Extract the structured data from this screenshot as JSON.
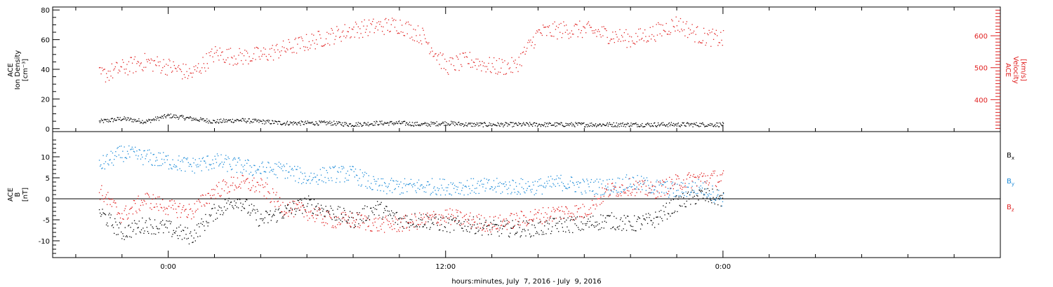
{
  "chart_data": [
    {
      "type": "scatter",
      "panel": "top",
      "ylabel_left": [
        "ACE",
        "Ion Density",
        "[cm⁻³]"
      ],
      "ylabel_right": [
        "ACE",
        "Velocity",
        "[km/s]"
      ],
      "ylim_left": [
        -2,
        82
      ],
      "ylim_right": [
        300,
        690
      ],
      "yticks_left": [
        "80",
        "60",
        "40",
        "20",
        "0"
      ],
      "yticks_right": [
        "600",
        "500",
        "400"
      ],
      "series": [
        {
          "axis": "left",
          "color": "#000000",
          "x": [
            -3,
            -2,
            -1,
            0,
            1,
            2,
            3,
            4,
            5,
            6,
            7,
            8,
            9,
            10,
            11,
            12,
            13,
            14,
            15,
            16,
            17,
            18,
            19,
            20,
            21,
            22,
            23,
            24
          ],
          "y": [
            5,
            7,
            5,
            9,
            7,
            5,
            6,
            5,
            4,
            4,
            4,
            3,
            4,
            4,
            3,
            4,
            3,
            3,
            3,
            3,
            3,
            3,
            3,
            3,
            3,
            3,
            3,
            3
          ]
        },
        {
          "axis": "right",
          "color": "#e02020",
          "x": [
            -3,
            -2,
            -1,
            0,
            1,
            2,
            3,
            4,
            5,
            6,
            7,
            8,
            9,
            10,
            11,
            12,
            13,
            14,
            15,
            16,
            17,
            18,
            19,
            20,
            21,
            22,
            23,
            24
          ],
          "y": [
            475,
            500,
            520,
            505,
            480,
            545,
            535,
            540,
            560,
            580,
            600,
            620,
            630,
            635,
            600,
            505,
            525,
            505,
            505,
            610,
            620,
            620,
            605,
            590,
            610,
            640,
            600,
            590
          ]
        }
      ]
    },
    {
      "type": "scatter",
      "panel": "bottom",
      "ylabel": [
        "ACE",
        "B",
        "[nT]"
      ],
      "ylim": [
        -14,
        16
      ],
      "yticks": [
        "10",
        "5",
        "0",
        "-5",
        "-10"
      ],
      "zero_line": true,
      "legend": [
        {
          "text": "B",
          "sub": "x",
          "color": "#000000"
        },
        {
          "text": "B",
          "sub": "y",
          "color": "#1a8ad8"
        },
        {
          "text": "B",
          "sub": "z",
          "color": "#e02020"
        }
      ],
      "series": [
        {
          "name": "Bx",
          "color": "#000000",
          "x": [
            -3,
            -2,
            -1,
            0,
            1,
            2,
            3,
            4,
            5,
            6,
            7,
            8,
            9,
            10,
            11,
            12,
            13,
            14,
            15,
            16,
            17,
            18,
            19,
            20,
            21,
            22,
            23,
            24
          ],
          "y": [
            -3,
            -8,
            -6,
            -7,
            -9,
            -3,
            0,
            -5,
            -3,
            -1,
            -3,
            -5,
            -2,
            -5,
            -5,
            -6,
            -6,
            -7,
            -7,
            -7,
            -6,
            -6,
            -5,
            -6,
            -5,
            -1,
            1,
            0
          ]
        },
        {
          "name": "By",
          "color": "#1a8ad8",
          "x": [
            -3,
            -2,
            -1,
            0,
            1,
            2,
            3,
            4,
            5,
            6,
            7,
            8,
            9,
            10,
            11,
            12,
            13,
            14,
            15,
            16,
            17,
            18,
            19,
            20,
            21,
            22,
            23,
            24
          ],
          "y": [
            8,
            11,
            10,
            9,
            8,
            9,
            8,
            7,
            7,
            5,
            6,
            6,
            3,
            3,
            3,
            3,
            3,
            3,
            3,
            3,
            4,
            3,
            3,
            4,
            3,
            2,
            3,
            0
          ]
        },
        {
          "name": "Bz",
          "color": "#e02020",
          "x": [
            -3,
            -2,
            -1,
            0,
            1,
            2,
            3,
            4,
            5,
            6,
            7,
            8,
            9,
            10,
            11,
            12,
            13,
            14,
            15,
            16,
            17,
            18,
            19,
            20,
            21,
            22,
            23,
            24
          ],
          "y": [
            2,
            -4,
            0,
            -2,
            -3,
            2,
            4,
            3,
            -2,
            -3,
            -5,
            -5,
            -6,
            -6,
            -5,
            -4,
            -5,
            -6,
            -5,
            -4,
            -3,
            -3,
            2,
            3,
            2,
            4,
            5,
            5
          ]
        }
      ]
    }
  ],
  "x_axis": {
    "xlim": [
      -5,
      36
    ],
    "ticks": [
      {
        "x": 0,
        "label": "0:00"
      },
      {
        "x": 12,
        "label": "12:00"
      },
      {
        "x": 24,
        "label": "0:00"
      }
    ],
    "xlabel": "hours:minutes, July  7, 2016 - July  9, 2016"
  }
}
